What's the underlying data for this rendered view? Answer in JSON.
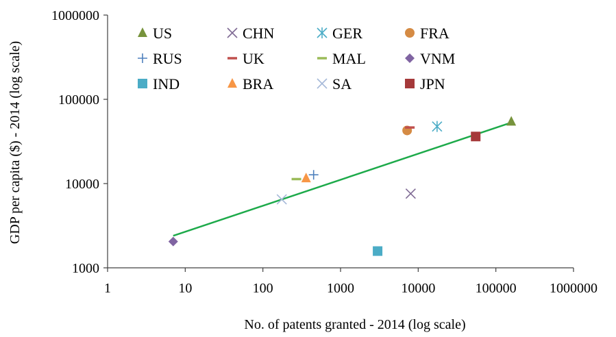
{
  "chart_data": {
    "type": "scatter",
    "title": "",
    "xlabel": "No. of patents granted - 2014 (log scale)",
    "ylabel": "GDP per capita ($) - 2014 (log scale)",
    "xscale": "log",
    "yscale": "log",
    "xlim": [
      1,
      1000000
    ],
    "ylim": [
      1000,
      1000000
    ],
    "x_ticks": [
      "1",
      "10",
      "100",
      "1000",
      "10000",
      "100000",
      "1000000"
    ],
    "y_ticks": [
      "1000",
      "10000",
      "100000",
      "1000000"
    ],
    "grid": false,
    "legend_position": "top-left, inside plot, 4 columns",
    "series": [
      {
        "name": "US",
        "marker": "triangle",
        "color": "#77933C",
        "x": 158000,
        "y": 54600
      },
      {
        "name": "CHN",
        "marker": "x",
        "color": "#7F6A94",
        "x": 8000,
        "y": 7600
      },
      {
        "name": "GER",
        "marker": "asterisk",
        "color": "#4BACC6",
        "x": 17500,
        "y": 47600
      },
      {
        "name": "FRA",
        "marker": "circle",
        "color": "#D58B44",
        "x": 7200,
        "y": 42700
      },
      {
        "name": "RUS",
        "marker": "plus",
        "color": "#4F81BD",
        "x": 450,
        "y": 12700
      },
      {
        "name": "UK",
        "marker": "dash",
        "color": "#C0504D",
        "x": 7800,
        "y": 46300
      },
      {
        "name": "MAL",
        "marker": "dash",
        "color": "#9BBB59",
        "x": 270,
        "y": 11300
      },
      {
        "name": "VNM",
        "marker": "diamond",
        "color": "#8064A2",
        "x": 7,
        "y": 2050
      },
      {
        "name": "IND",
        "marker": "square",
        "color": "#4BACC6",
        "x": 3000,
        "y": 1580
      },
      {
        "name": "BRA",
        "marker": "triangle",
        "color": "#F79646",
        "x": 360,
        "y": 11600
      },
      {
        "name": "SA",
        "marker": "x",
        "color": "#A5B8D8",
        "x": 175,
        "y": 6500
      },
      {
        "name": "JPN",
        "marker": "square",
        "color": "#A5393A",
        "x": 55000,
        "y": 36200
      }
    ],
    "trendline": {
      "color": "#1DAA4A",
      "x": [
        7,
        158000
      ],
      "y": [
        2400,
        53000
      ]
    }
  }
}
